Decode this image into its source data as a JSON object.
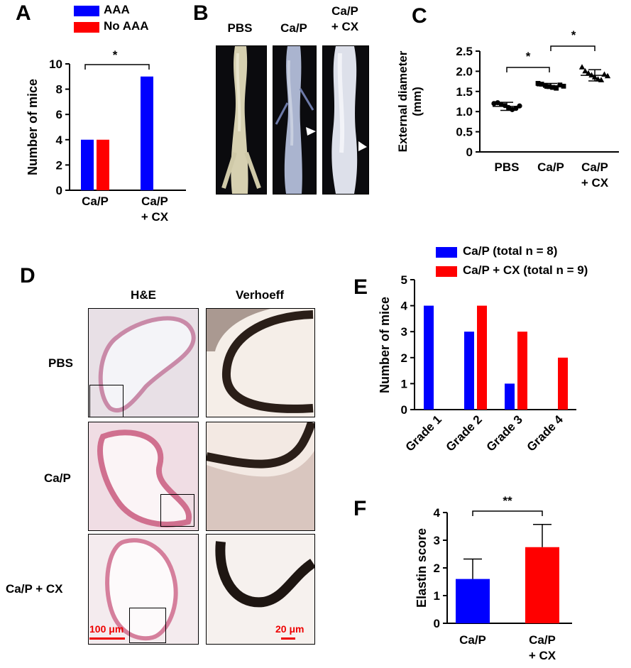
{
  "panels": {
    "A": {
      "letter": "A",
      "legend": [
        {
          "label": "AAA",
          "color": "#0000ff"
        },
        {
          "label": "No AAA",
          "color": "#ff0000"
        }
      ],
      "cat1": "Ca/P",
      "cat2_line1": "Ca/P",
      "cat2_line2": "+ CX",
      "sig": "*"
    },
    "B": {
      "letter": "B",
      "col1": "PBS",
      "col2": "Ca/P",
      "col3_line1": "Ca/P",
      "col3_line2": "+ CX"
    },
    "C": {
      "letter": "C",
      "cat1": "PBS",
      "cat2": "Ca/P",
      "cat3_line1": "Ca/P",
      "cat3_line2": "+ CX",
      "sig1": "*",
      "sig2": "*"
    },
    "D": {
      "letter": "D",
      "col1": "H&E",
      "col2": "Verhoeff",
      "row1": "PBS",
      "row2": "Ca/P",
      "row3": "Ca/P + CX",
      "scale1": "100 μm",
      "scale2": "20 μm"
    },
    "E": {
      "letter": "E",
      "legend1": "Ca/P (total n = 8)",
      "legend2": "Ca/P + CX (total n = 9)"
    },
    "F": {
      "letter": "F",
      "cat1": "Ca/P",
      "cat2_line1": "Ca/P",
      "cat2_line2": "+ CX",
      "sig": "**"
    }
  },
  "chart_data": [
    {
      "panel": "A",
      "type": "bar",
      "categories": [
        "Ca/P",
        "Ca/P + CX"
      ],
      "series": [
        {
          "name": "AAA",
          "values": [
            4,
            9
          ],
          "color": "#0000ff"
        },
        {
          "name": "No AAA",
          "values": [
            4,
            0
          ],
          "color": "#ff0000"
        }
      ],
      "ylabel": "Number of mice",
      "ylim": [
        0,
        10
      ],
      "yticks": [
        0,
        2,
        4,
        6,
        8,
        10
      ]
    },
    {
      "panel": "C",
      "type": "scatter",
      "categories": [
        "PBS",
        "Ca/P",
        "Ca/P + CX"
      ],
      "ylabel_line1": "External diameter",
      "ylabel_line2": "(mm)",
      "ylim": [
        0,
        2.5
      ],
      "yticks": [
        "0",
        "0.5",
        "1.0",
        "1.5",
        "2.0",
        "2.5"
      ],
      "groups": [
        {
          "name": "PBS",
          "marker": "circle",
          "mean": 1.13,
          "sd": 0.1,
          "values": [
            1.2,
            1.22,
            1.18,
            1.15,
            1.1,
            1.05,
            1.08,
            1.14
          ]
        },
        {
          "name": "Ca/P",
          "marker": "square",
          "mean": 1.64,
          "sd": 0.06,
          "values": [
            1.7,
            1.68,
            1.65,
            1.62,
            1.6,
            1.58,
            1.66,
            1.63
          ]
        },
        {
          "name": "Ca/P + CX",
          "marker": "triangle",
          "mean": 1.9,
          "sd": 0.14,
          "values": [
            2.1,
            2.0,
            1.95,
            1.9,
            1.85,
            1.8,
            1.78,
            1.92,
            1.88
          ]
        }
      ]
    },
    {
      "panel": "E",
      "type": "bar",
      "categories": [
        "Grade 1",
        "Grade 2",
        "Grade 3",
        "Grade 4"
      ],
      "series": [
        {
          "name": "Ca/P (total n = 8)",
          "values": [
            4,
            3,
            1,
            0
          ],
          "color": "#0000ff"
        },
        {
          "name": "Ca/P + CX (total n = 9)",
          "values": [
            0,
            4,
            3,
            2
          ],
          "color": "#ff0000"
        }
      ],
      "ylabel": "Number of mice",
      "ylim": [
        0,
        5
      ],
      "yticks": [
        0,
        1,
        2,
        3,
        4,
        5
      ]
    },
    {
      "panel": "F",
      "type": "bar",
      "categories": [
        "Ca/P",
        "Ca/P + CX"
      ],
      "values": [
        1.6,
        2.75
      ],
      "errors": [
        0.72,
        0.82
      ],
      "colors": [
        "#0000ff",
        "#ff0000"
      ],
      "ylabel": "Elastin score",
      "ylim": [
        0,
        4
      ],
      "yticks": [
        0,
        1,
        2,
        3,
        4
      ]
    }
  ]
}
